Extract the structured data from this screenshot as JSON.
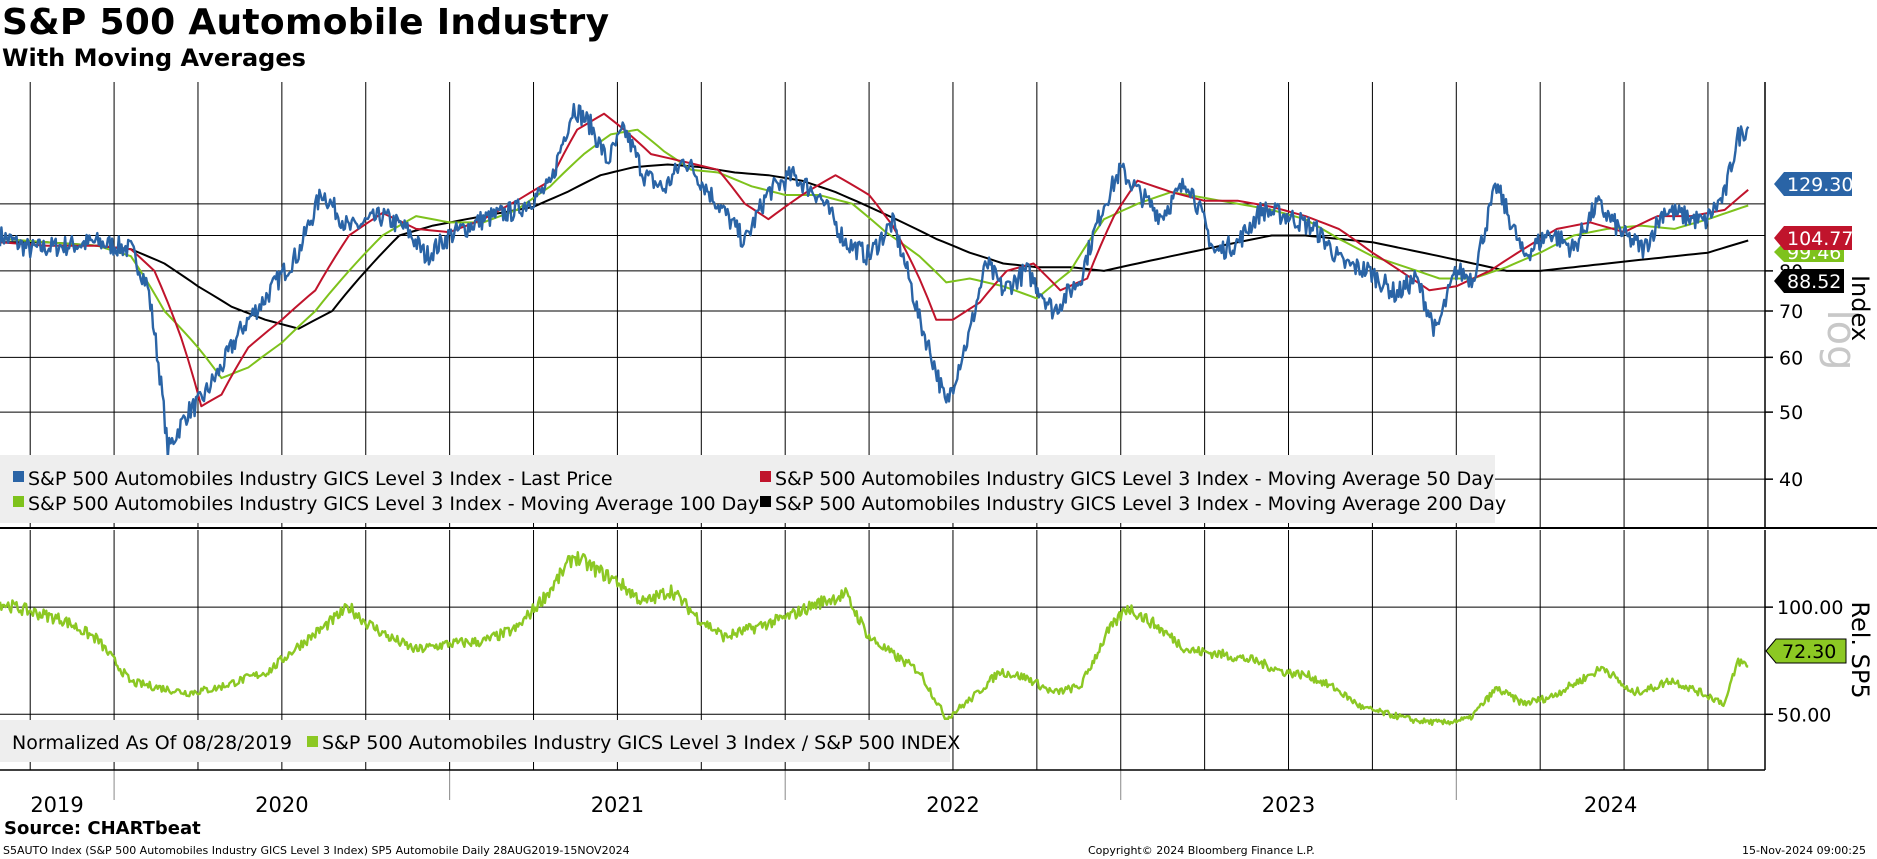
{
  "header": {
    "title": "S&P 500 Automobile Industry",
    "subtitle": "With Moving Averages"
  },
  "footer": {
    "source": "Source: CHARTbeat",
    "description": "S5AUTO Index (S&P 500 Automobiles Industry GICS Level 3 Index) SP5 Automobile  Daily 28AUG2019-15NOV2024",
    "copyright": "Copyright© 2024 Bloomberg Finance L.P.",
    "timestamp": "15-Nov-2024 09:00:25"
  },
  "colors": {
    "last_price": "#2a64a6",
    "ma50": "#c0142c",
    "ma100": "#7ec21c",
    "ma200": "#000000",
    "relative": "#8cc823",
    "legend_bg": "#eeeeee",
    "grid": "#000000"
  },
  "chart_data": [
    {
      "type": "line",
      "panel": "upper",
      "y_axis_label": "Index",
      "y_scale": "log",
      "ylim": [
        34,
        150
      ],
      "yticks": [
        40,
        50,
        60,
        70,
        80
      ],
      "xlim": [
        2019.66,
        2024.92
      ],
      "x_year_labels": [
        "2019",
        "2020",
        "2021",
        "2022",
        "2023",
        "2024"
      ],
      "legend": [
        "S&P 500 Automobiles Industry GICS Level 3 Index - Last Price",
        "S&P 500 Automobiles Industry GICS Level 3 Index - Moving Average 50 Day",
        "S&P 500 Automobiles Industry GICS Level 3 Index - Moving Average 100 Day",
        "S&P 500 Automobiles Industry GICS Level 3 Index - Moving Average 200 Day"
      ],
      "last_values": {
        "last_price": "129.30",
        "ma50": "104.77",
        "ma100": "99.46",
        "ma200": "88.52"
      },
      "series": [
        {
          "name": "Last Price",
          "key": "last_price",
          "x": [
            2019.66,
            2019.75,
            2019.85,
            2019.95,
            2020.05,
            2020.1,
            2020.16,
            2020.19,
            2020.22,
            2020.26,
            2020.32,
            2020.38,
            2020.45,
            2020.55,
            2020.62,
            2020.7,
            2020.8,
            2020.87,
            2020.93,
            2021.0,
            2021.1,
            2021.2,
            2021.3,
            2021.37,
            2021.42,
            2021.47,
            2021.52,
            2021.58,
            2021.64,
            2021.7,
            2021.78,
            2021.88,
            2021.95,
            2022.02,
            2022.1,
            2022.18,
            2022.25,
            2022.32,
            2022.4,
            2022.48,
            2022.55,
            2022.6,
            2022.65,
            2022.72,
            2022.8,
            2022.88,
            2022.95,
            2023.0,
            2023.06,
            2023.12,
            2023.2,
            2023.28,
            2023.35,
            2023.42,
            2023.5,
            2023.58,
            2023.66,
            2023.74,
            2023.82,
            2023.88,
            2023.94,
            2024.0,
            2024.05,
            2024.12,
            2024.2,
            2024.28,
            2024.35,
            2024.42,
            2024.5,
            2024.56,
            2024.62,
            2024.68,
            2024.74,
            2024.8,
            2024.84,
            2024.87
          ],
          "y": [
            90,
            86,
            87,
            88,
            86,
            76,
            44,
            47,
            50,
            52,
            58,
            66,
            73,
            85,
            104,
            92,
            96,
            92,
            84,
            90,
            95,
            98,
            106,
            138,
            130,
            115,
            128,
            110,
            105,
            116,
            103,
            88,
            104,
            110,
            103,
            88,
            84,
            94,
            68,
            51,
            65,
            82,
            75,
            80,
            70,
            78,
            100,
            112,
            103,
            96,
            108,
            85,
            88,
            98,
            96,
            92,
            82,
            80,
            74,
            78,
            65,
            80,
            78,
            106,
            84,
            91,
            86,
            100,
            90,
            86,
            98,
            96,
            94,
            103,
            125,
            129.3
          ]
        },
        {
          "name": "Moving Average 50 Day",
          "key": "ma50",
          "x": [
            2019.66,
            2019.8,
            2019.95,
            2020.05,
            2020.12,
            2020.2,
            2020.26,
            2020.32,
            2020.4,
            2020.5,
            2020.6,
            2020.7,
            2020.8,
            2020.9,
            2021.0,
            2021.1,
            2021.2,
            2021.3,
            2021.38,
            2021.46,
            2021.52,
            2021.6,
            2021.7,
            2021.8,
            2021.88,
            2021.95,
            2022.05,
            2022.15,
            2022.25,
            2022.32,
            2022.4,
            2022.45,
            2022.5,
            2022.58,
            2022.66,
            2022.74,
            2022.82,
            2022.9,
            2022.98,
            2023.05,
            2023.15,
            2023.25,
            2023.35,
            2023.45,
            2023.55,
            2023.65,
            2023.75,
            2023.85,
            2023.92,
            2024.0,
            2024.1,
            2024.2,
            2024.3,
            2024.4,
            2024.5,
            2024.6,
            2024.7,
            2024.8,
            2024.87
          ],
          "y": [
            88,
            87,
            87,
            86,
            80,
            64,
            51,
            53,
            62,
            68,
            75,
            90,
            97,
            92,
            91,
            95,
            101,
            108,
            128,
            135,
            128,
            118,
            115,
            112,
            100,
            95,
            103,
            110,
            103,
            93,
            78,
            68,
            68,
            72,
            80,
            82,
            75,
            78,
            96,
            108,
            104,
            101,
            101,
            99,
            96,
            92,
            85,
            79,
            75,
            76,
            80,
            86,
            92,
            94,
            91,
            96,
            96,
            98,
            104.77
          ]
        },
        {
          "name": "Moving Average 100 Day",
          "key": "ma100",
          "x": [
            2019.66,
            2019.8,
            2019.95,
            2020.05,
            2020.15,
            2020.25,
            2020.32,
            2020.4,
            2020.5,
            2020.6,
            2020.7,
            2020.8,
            2020.9,
            2021.0,
            2021.1,
            2021.2,
            2021.3,
            2021.4,
            2021.48,
            2021.56,
            2021.64,
            2021.72,
            2021.8,
            2021.9,
            2022.0,
            2022.1,
            2022.2,
            2022.3,
            2022.4,
            2022.48,
            2022.55,
            2022.65,
            2022.75,
            2022.85,
            2022.95,
            2023.05,
            2023.15,
            2023.25,
            2023.35,
            2023.45,
            2023.55,
            2023.65,
            2023.75,
            2023.85,
            2023.95,
            2024.05,
            2024.15,
            2024.25,
            2024.35,
            2024.45,
            2024.55,
            2024.65,
            2024.75,
            2024.87
          ],
          "y": [
            89,
            88,
            87,
            84,
            70,
            62,
            56,
            58,
            63,
            70,
            80,
            90,
            96,
            94,
            94,
            98,
            106,
            118,
            126,
            128,
            119,
            112,
            111,
            106,
            103,
            103,
            100,
            91,
            84,
            77,
            78,
            76,
            73,
            80,
            95,
            100,
            104,
            102,
            100,
            98,
            95,
            89,
            84,
            81,
            78,
            78,
            81,
            85,
            90,
            92,
            93,
            92,
            95,
            99.46
          ]
        },
        {
          "name": "Moving Average 200 Day",
          "key": "ma200",
          "x": [
            2019.66,
            2019.8,
            2019.95,
            2020.05,
            2020.15,
            2020.25,
            2020.35,
            2020.45,
            2020.55,
            2020.65,
            2020.75,
            2020.85,
            2020.95,
            2021.05,
            2021.15,
            2021.25,
            2021.35,
            2021.45,
            2021.55,
            2021.65,
            2021.75,
            2021.85,
            2021.95,
            2022.05,
            2022.15,
            2022.25,
            2022.35,
            2022.45,
            2022.55,
            2022.65,
            2022.75,
            2022.85,
            2022.95,
            2023.05,
            2023.15,
            2023.25,
            2023.35,
            2023.45,
            2023.55,
            2023.65,
            2023.75,
            2023.85,
            2023.95,
            2024.05,
            2024.15,
            2024.25,
            2024.35,
            2024.45,
            2024.55,
            2024.65,
            2024.75,
            2024.87
          ],
          "y": [
            88,
            88,
            87,
            86,
            82,
            76,
            71,
            68,
            66,
            70,
            80,
            90,
            93,
            95,
            97,
            99,
            104,
            110,
            113,
            114,
            113,
            111,
            110,
            108,
            104,
            99,
            94,
            89,
            85,
            82,
            81,
            81,
            80,
            82,
            84,
            86,
            88,
            90,
            90,
            89,
            88,
            86,
            84,
            82,
            80,
            80,
            81,
            82,
            83,
            84,
            85,
            88.52
          ]
        }
      ]
    },
    {
      "type": "line",
      "panel": "lower",
      "y_axis_label": "Rel. SP5",
      "ylim": [
        24,
        136
      ],
      "yticks": [
        "100.00",
        "50.00"
      ],
      "ytick_values": [
        100,
        50
      ],
      "xlim": [
        2019.66,
        2024.92
      ],
      "legend": [
        "Normalized As Of 08/28/2019",
        "S&P 500 Automobiles Industry GICS Level 3 Index / S&P 500 INDEX"
      ],
      "last_value": "72.30",
      "series": [
        {
          "name": "S&P 500 Automobiles Industry GICS Level 3 Index / S&P 500 INDEX",
          "key": "relative",
          "x": [
            2019.66,
            2019.75,
            2019.85,
            2019.95,
            2020.05,
            2020.15,
            2020.22,
            2020.3,
            2020.38,
            2020.46,
            2020.55,
            2020.62,
            2020.7,
            2020.75,
            2020.82,
            2020.9,
            2021.0,
            2021.1,
            2021.2,
            2021.3,
            2021.37,
            2021.43,
            2021.5,
            2021.58,
            2021.66,
            2021.74,
            2021.82,
            2021.9,
            2022.0,
            2022.1,
            2022.18,
            2022.25,
            2022.32,
            2022.4,
            2022.48,
            2022.56,
            2022.64,
            2022.72,
            2022.8,
            2022.88,
            2022.96,
            2023.02,
            2023.1,
            2023.2,
            2023.3,
            2023.4,
            2023.48,
            2023.56,
            2023.64,
            2023.72,
            2023.8,
            2023.88,
            2023.96,
            2024.04,
            2024.12,
            2024.2,
            2024.28,
            2024.36,
            2024.44,
            2024.52,
            2024.58,
            2024.64,
            2024.7,
            2024.76,
            2024.8,
            2024.84,
            2024.87
          ],
          "y": [
            102,
            98,
            94,
            85,
            65,
            62,
            60,
            62,
            66,
            70,
            82,
            90,
            100,
            93,
            86,
            80,
            83,
            84,
            90,
            108,
            124,
            118,
            112,
            102,
            108,
            95,
            86,
            90,
            95,
            102,
            106,
            86,
            78,
            70,
            48,
            58,
            70,
            67,
            60,
            63,
            88,
            100,
            92,
            80,
            78,
            75,
            70,
            68,
            62,
            53,
            50,
            47,
            46,
            48,
            62,
            55,
            58,
            65,
            72,
            60,
            62,
            66,
            62,
            58,
            55,
            75,
            72.3
          ]
        }
      ]
    }
  ]
}
